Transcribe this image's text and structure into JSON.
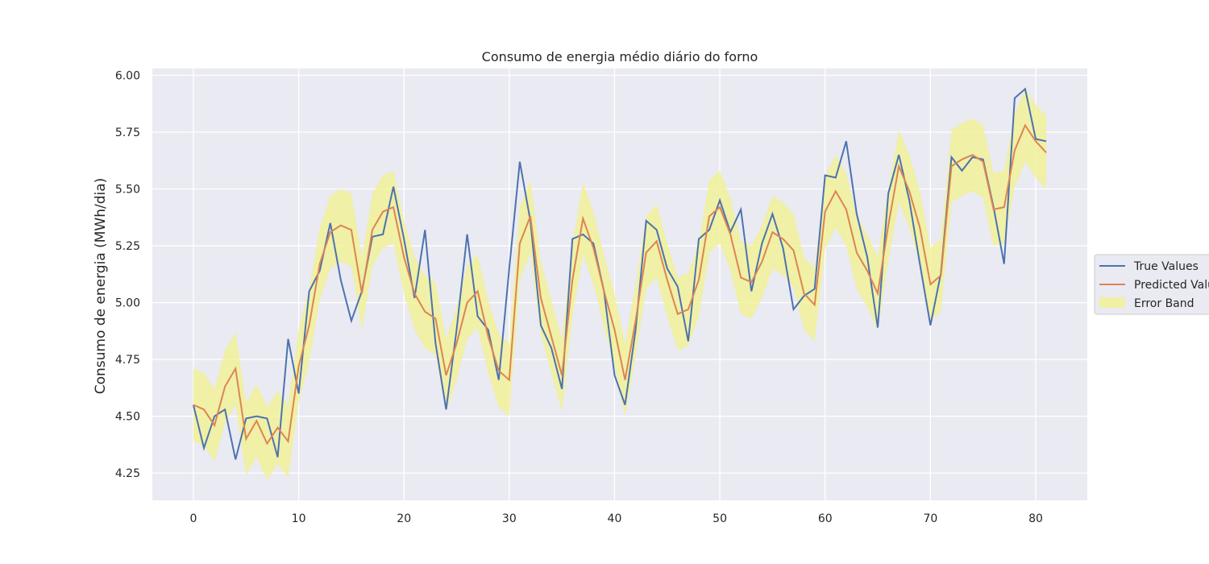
{
  "chart_data": {
    "type": "line",
    "title": "Consumo de energia médio diário do forno",
    "xlabel": "",
    "ylabel": "Consumo de energia (MWh/dia)",
    "xlim": [
      -3.9,
      84.9
    ],
    "ylim": [
      4.13,
      6.03
    ],
    "x_ticks": [
      0,
      10,
      20,
      30,
      40,
      50,
      60,
      70,
      80
    ],
    "y_ticks": [
      4.25,
      4.5,
      4.75,
      5.0,
      5.25,
      5.5,
      5.75,
      6.0
    ],
    "grid": true,
    "legend_position": "right",
    "series": [
      {
        "name": "True Values",
        "color": "#4c72b0",
        "values": [
          4.55,
          4.36,
          4.5,
          4.53,
          4.31,
          4.49,
          4.5,
          4.49,
          4.32,
          4.84,
          4.6,
          5.05,
          5.14,
          5.35,
          5.1,
          4.92,
          5.05,
          5.29,
          5.3,
          5.51,
          5.28,
          5.02,
          5.32,
          4.82,
          4.53,
          4.88,
          5.3,
          4.94,
          4.88,
          4.66,
          5.15,
          5.62,
          5.36,
          4.9,
          4.8,
          4.62,
          5.28,
          5.3,
          5.26,
          5.05,
          4.68,
          4.55,
          4.88,
          5.36,
          5.32,
          5.15,
          5.07,
          4.83,
          5.28,
          5.32,
          5.45,
          5.31,
          5.41,
          5.05,
          5.26,
          5.39,
          5.24,
          4.97,
          5.03,
          5.06,
          5.56,
          5.55,
          5.71,
          5.39,
          5.2,
          4.89,
          5.48,
          5.65,
          5.45,
          5.17,
          4.9,
          5.13,
          5.64,
          5.58,
          5.64,
          5.63,
          5.42,
          5.17,
          5.9,
          5.94,
          5.72,
          5.71
        ]
      },
      {
        "name": "Predicted Values",
        "color": "#dd8452",
        "values": [
          4.55,
          4.53,
          4.46,
          4.63,
          4.71,
          4.4,
          4.48,
          4.38,
          4.45,
          4.39,
          4.72,
          4.9,
          5.17,
          5.31,
          5.34,
          5.32,
          5.04,
          5.32,
          5.4,
          5.42,
          5.2,
          5.04,
          4.96,
          4.93,
          4.68,
          4.82,
          5.0,
          5.05,
          4.85,
          4.7,
          4.66,
          5.26,
          5.38,
          5.02,
          4.85,
          4.68,
          5.1,
          5.37,
          5.24,
          5.05,
          4.88,
          4.66,
          4.92,
          5.22,
          5.27,
          5.1,
          4.95,
          4.97,
          5.1,
          5.38,
          5.42,
          5.3,
          5.11,
          5.09,
          5.18,
          5.31,
          5.28,
          5.23,
          5.04,
          4.99,
          5.4,
          5.49,
          5.41,
          5.22,
          5.14,
          5.04,
          5.34,
          5.6,
          5.49,
          5.33,
          5.08,
          5.12,
          5.6,
          5.63,
          5.65,
          5.62,
          5.41,
          5.42,
          5.67,
          5.78,
          5.71,
          5.66
        ]
      }
    ],
    "error_band": {
      "name": "Error Band",
      "color": "#f2f28c",
      "half_width": 0.16
    }
  }
}
